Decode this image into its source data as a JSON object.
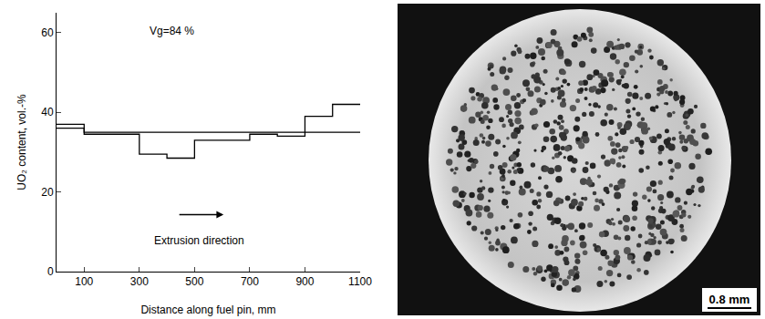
{
  "chart_data": {
    "type": "step",
    "x_label": "Distance along fuel pin, mm",
    "y_label": "UO₂ content, vol.-%",
    "annotations": [
      "Vg=84 %",
      "Extrusion direction"
    ],
    "bins": [
      0,
      100,
      200,
      300,
      400,
      500,
      600,
      700,
      800,
      900,
      1000,
      1100
    ],
    "series": [
      {
        "color": "#000000",
        "values": [
          37,
          34.5,
          34.5,
          29.5,
          28.5,
          33,
          33,
          34.5,
          34,
          39,
          42
        ]
      },
      {
        "color": "#000000",
        "values": [
          36,
          35,
          35,
          35,
          35,
          35,
          35,
          35,
          35,
          35,
          35
        ]
      }
    ],
    "xlim": [
      0,
      1100
    ],
    "xticks": [
      100,
      300,
      500,
      700,
      900,
      1100
    ],
    "ylim": [
      0,
      65
    ],
    "yticks": [
      0,
      20,
      40,
      60
    ],
    "grid": false
  },
  "micrograph": {
    "scale_label": "0.8 mm"
  }
}
